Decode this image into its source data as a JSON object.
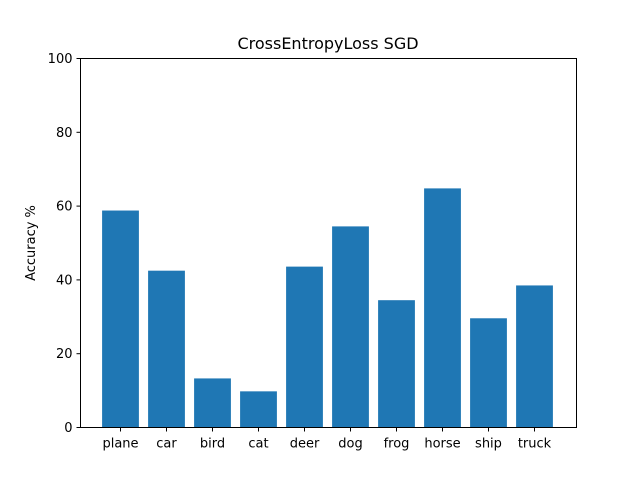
{
  "chart_data": {
    "type": "bar",
    "title": "CrossEntropyLoss SGD",
    "xlabel": "",
    "ylabel": "Accuracy %",
    "categories": [
      "plane",
      "car",
      "bird",
      "cat",
      "deer",
      "dog",
      "frog",
      "horse",
      "ship",
      "truck"
    ],
    "values": [
      58.8,
      42.5,
      13.3,
      9.8,
      43.6,
      54.5,
      34.5,
      64.8,
      29.6,
      38.5
    ],
    "ylim": [
      0,
      100
    ],
    "yticks": [
      0,
      20,
      40,
      60,
      80,
      100
    ],
    "bar_color": "#1f77b4",
    "grid": false,
    "legend": false
  }
}
